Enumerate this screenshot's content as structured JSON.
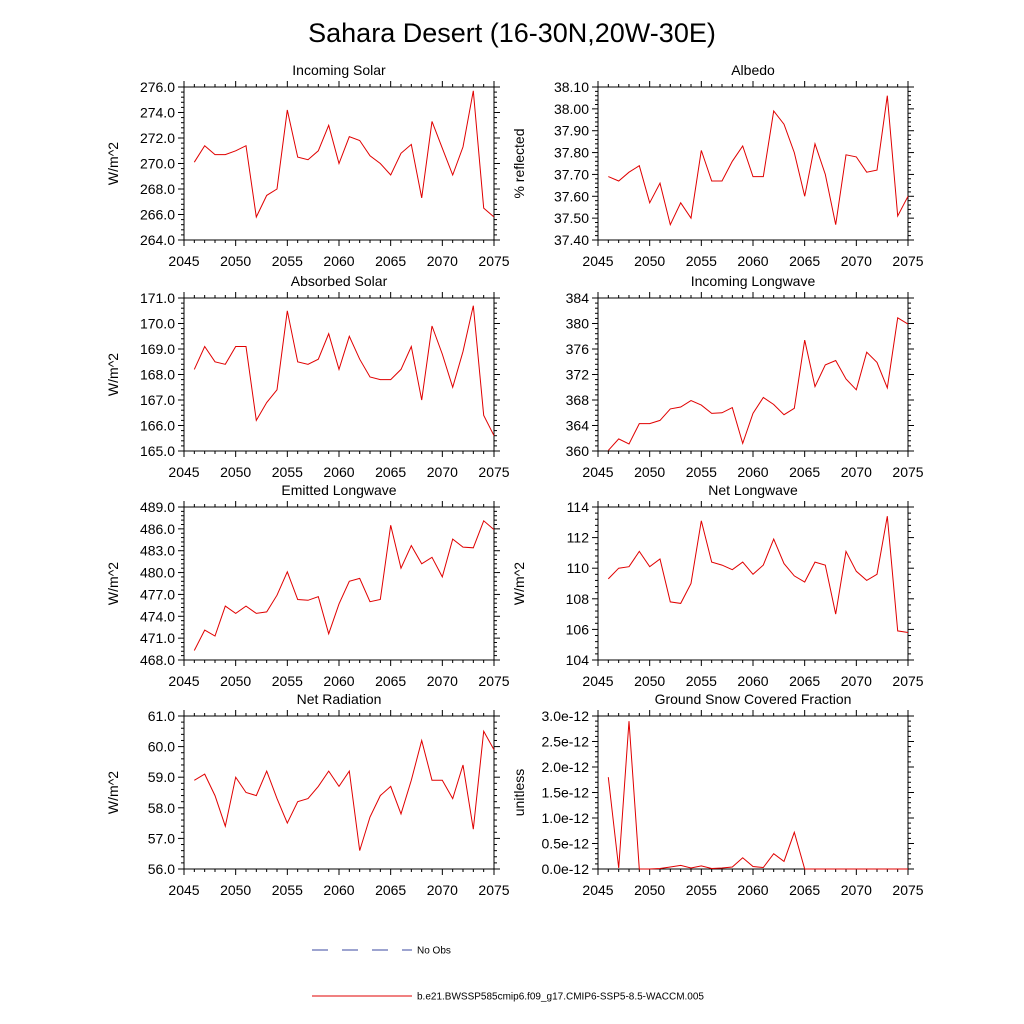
{
  "page_title": "Sahara Desert (16-30N,20W-30E)",
  "legend": {
    "items": [
      {
        "label": "No Obs",
        "style": "dashed",
        "color": "#3b4aa0"
      },
      {
        "label": "b.e21.BWSSP585cmip6.f09_g17.CMIP6-SSP5-8.5-WACCM.005",
        "style": "solid",
        "color": "#e00000"
      }
    ]
  },
  "chart_data": [
    {
      "type": "line",
      "title": "Incoming Solar",
      "ylabel": "W/m^2",
      "xlim": [
        2045,
        2075
      ],
      "ylim": [
        264,
        276
      ],
      "xticks": [
        2045,
        2050,
        2055,
        2060,
        2065,
        2070,
        2075
      ],
      "yticks": [
        264,
        266,
        268,
        270,
        272,
        274,
        276
      ],
      "yticklabels": [
        "264.0",
        "266.0",
        "268.0",
        "270.0",
        "272.0",
        "274.0",
        "276.0"
      ],
      "series": [
        {
          "color": "#e00000",
          "x": [
            2046,
            2047,
            2048,
            2049,
            2050,
            2051,
            2052,
            2053,
            2054,
            2055,
            2056,
            2057,
            2058,
            2059,
            2060,
            2061,
            2062,
            2063,
            2064,
            2065,
            2066,
            2067,
            2068,
            2069,
            2070,
            2071,
            2072,
            2073,
            2074,
            2075
          ],
          "y": [
            270.1,
            271.4,
            270.7,
            270.7,
            271.0,
            271.4,
            265.8,
            267.5,
            268.0,
            274.2,
            270.5,
            270.3,
            271.0,
            273.0,
            270.0,
            272.1,
            271.8,
            270.6,
            270.0,
            269.1,
            270.8,
            271.5,
            267.3,
            273.3,
            271.2,
            269.1,
            271.3,
            275.7,
            266.5,
            265.8
          ]
        }
      ]
    },
    {
      "type": "line",
      "title": "Albedo",
      "ylabel": "% reflected",
      "xlim": [
        2045,
        2075
      ],
      "ylim": [
        37.4,
        38.1
      ],
      "xticks": [
        2045,
        2050,
        2055,
        2060,
        2065,
        2070,
        2075
      ],
      "yticks": [
        37.4,
        37.5,
        37.6,
        37.7,
        37.8,
        37.9,
        38.0,
        38.1
      ],
      "yticklabels": [
        "37.40",
        "37.50",
        "37.60",
        "37.70",
        "37.80",
        "37.90",
        "38.00",
        "38.10"
      ],
      "series": [
        {
          "color": "#e00000",
          "x": [
            2046,
            2047,
            2048,
            2049,
            2050,
            2051,
            2052,
            2053,
            2054,
            2055,
            2056,
            2057,
            2058,
            2059,
            2060,
            2061,
            2062,
            2063,
            2064,
            2065,
            2066,
            2067,
            2068,
            2069,
            2070,
            2071,
            2072,
            2073,
            2074,
            2075
          ],
          "y": [
            37.69,
            37.67,
            37.71,
            37.74,
            37.57,
            37.66,
            37.47,
            37.57,
            37.5,
            37.81,
            37.67,
            37.67,
            37.76,
            37.83,
            37.69,
            37.69,
            37.99,
            37.93,
            37.8,
            37.6,
            37.84,
            37.7,
            37.47,
            37.79,
            37.78,
            37.71,
            37.72,
            38.06,
            37.51,
            37.6
          ]
        }
      ]
    },
    {
      "type": "line",
      "title": "Absorbed Solar",
      "ylabel": "W/m^2",
      "xlim": [
        2045,
        2075
      ],
      "ylim": [
        165,
        171
      ],
      "xticks": [
        2045,
        2050,
        2055,
        2060,
        2065,
        2070,
        2075
      ],
      "yticks": [
        165,
        166,
        167,
        168,
        169,
        170,
        171
      ],
      "yticklabels": [
        "165.0",
        "166.0",
        "167.0",
        "168.0",
        "169.0",
        "170.0",
        "171.0"
      ],
      "series": [
        {
          "color": "#e00000",
          "x": [
            2046,
            2047,
            2048,
            2049,
            2050,
            2051,
            2052,
            2053,
            2054,
            2055,
            2056,
            2057,
            2058,
            2059,
            2060,
            2061,
            2062,
            2063,
            2064,
            2065,
            2066,
            2067,
            2068,
            2069,
            2070,
            2071,
            2072,
            2073,
            2074,
            2075
          ],
          "y": [
            168.2,
            169.1,
            168.5,
            168.4,
            169.1,
            169.1,
            166.2,
            166.9,
            167.4,
            170.5,
            168.5,
            168.4,
            168.6,
            169.6,
            168.2,
            169.5,
            168.6,
            167.9,
            167.8,
            167.8,
            168.2,
            169.1,
            167.0,
            169.9,
            168.8,
            167.5,
            168.9,
            170.7,
            166.4,
            165.6
          ]
        }
      ]
    },
    {
      "type": "line",
      "title": "Incoming Longwave",
      "ylabel": "",
      "xlim": [
        2045,
        2075
      ],
      "ylim": [
        360,
        384
      ],
      "xticks": [
        2045,
        2050,
        2055,
        2060,
        2065,
        2070,
        2075
      ],
      "yticks": [
        360,
        364,
        368,
        372,
        376,
        380,
        384
      ],
      "yticklabels": [
        "360",
        "364",
        "368",
        "372",
        "376",
        "380",
        "384"
      ],
      "series": [
        {
          "color": "#e00000",
          "x": [
            2046,
            2047,
            2048,
            2049,
            2050,
            2051,
            2052,
            2053,
            2054,
            2055,
            2056,
            2057,
            2058,
            2059,
            2060,
            2061,
            2062,
            2063,
            2064,
            2065,
            2066,
            2067,
            2068,
            2069,
            2070,
            2071,
            2072,
            2073,
            2074,
            2075
          ],
          "y": [
            360.1,
            361.9,
            361.1,
            364.3,
            364.3,
            364.8,
            366.6,
            366.9,
            367.9,
            367.2,
            365.9,
            366.0,
            366.8,
            361.2,
            365.9,
            368.4,
            367.3,
            365.7,
            366.7,
            377.4,
            370.1,
            373.5,
            374.2,
            371.3,
            369.6,
            375.5,
            373.9,
            369.9,
            380.9,
            379.9
          ]
        }
      ]
    },
    {
      "type": "line",
      "title": "Emitted Longwave",
      "ylabel": "W/m^2",
      "xlim": [
        2045,
        2075
      ],
      "ylim": [
        468,
        489
      ],
      "xticks": [
        2045,
        2050,
        2055,
        2060,
        2065,
        2070,
        2075
      ],
      "yticks": [
        468,
        471,
        474,
        477,
        480,
        483,
        486,
        489
      ],
      "yticklabels": [
        "468.0",
        "471.0",
        "474.0",
        "477.0",
        "480.0",
        "483.0",
        "486.0",
        "489.0"
      ],
      "series": [
        {
          "color": "#e00000",
          "x": [
            2046,
            2047,
            2048,
            2049,
            2050,
            2051,
            2052,
            2053,
            2054,
            2055,
            2056,
            2057,
            2058,
            2059,
            2060,
            2061,
            2062,
            2063,
            2064,
            2065,
            2066,
            2067,
            2068,
            2069,
            2070,
            2071,
            2072,
            2073,
            2074,
            2075
          ],
          "y": [
            469.3,
            472.1,
            471.3,
            475.4,
            474.4,
            475.4,
            474.4,
            474.6,
            476.9,
            480.1,
            476.3,
            476.2,
            476.7,
            471.6,
            475.7,
            478.8,
            479.2,
            476.0,
            476.3,
            486.5,
            480.6,
            483.7,
            481.2,
            482.1,
            479.4,
            484.6,
            483.5,
            483.4,
            487.1,
            485.9
          ]
        }
      ]
    },
    {
      "type": "line",
      "title": "Net Longwave",
      "ylabel": "W/m^2",
      "xlim": [
        2045,
        2075
      ],
      "ylim": [
        104,
        114
      ],
      "xticks": [
        2045,
        2050,
        2055,
        2060,
        2065,
        2070,
        2075
      ],
      "yticks": [
        104,
        106,
        108,
        110,
        112,
        114
      ],
      "yticklabels": [
        "104",
        "106",
        "108",
        "110",
        "112",
        "114"
      ],
      "series": [
        {
          "color": "#e00000",
          "x": [
            2046,
            2047,
            2048,
            2049,
            2050,
            2051,
            2052,
            2053,
            2054,
            2055,
            2056,
            2057,
            2058,
            2059,
            2060,
            2061,
            2062,
            2063,
            2064,
            2065,
            2066,
            2067,
            2068,
            2069,
            2070,
            2071,
            2072,
            2073,
            2074,
            2075
          ],
          "y": [
            109.3,
            110.0,
            110.1,
            111.1,
            110.1,
            110.6,
            107.8,
            107.7,
            109.0,
            113.1,
            110.4,
            110.2,
            109.9,
            110.4,
            109.6,
            110.2,
            111.9,
            110.3,
            109.5,
            109.1,
            110.4,
            110.2,
            107.0,
            111.1,
            109.8,
            109.2,
            109.6,
            113.4,
            105.9,
            105.8
          ]
        }
      ]
    },
    {
      "type": "line",
      "title": "Net Radiation",
      "ylabel": "W/m^2",
      "xlim": [
        2045,
        2075
      ],
      "ylim": [
        56,
        61
      ],
      "xticks": [
        2045,
        2050,
        2055,
        2060,
        2065,
        2070,
        2075
      ],
      "yticks": [
        56,
        57,
        58,
        59,
        60,
        61
      ],
      "yticklabels": [
        "56.0",
        "57.0",
        "58.0",
        "59.0",
        "60.0",
        "61.0"
      ],
      "series": [
        {
          "color": "#e00000",
          "x": [
            2046,
            2047,
            2048,
            2049,
            2050,
            2051,
            2052,
            2053,
            2054,
            2055,
            2056,
            2057,
            2058,
            2059,
            2060,
            2061,
            2062,
            2063,
            2064,
            2065,
            2066,
            2067,
            2068,
            2069,
            2070,
            2071,
            2072,
            2073,
            2074,
            2075
          ],
          "y": [
            58.9,
            59.1,
            58.4,
            57.4,
            59.0,
            58.5,
            58.4,
            59.2,
            58.3,
            57.5,
            58.2,
            58.3,
            58.7,
            59.2,
            58.7,
            59.2,
            56.6,
            57.7,
            58.4,
            58.7,
            57.8,
            58.9,
            60.2,
            58.9,
            58.9,
            58.3,
            59.4,
            57.3,
            60.5,
            59.9
          ]
        }
      ]
    },
    {
      "type": "line",
      "title": "Ground Snow Covered Fraction",
      "ylabel": "unitless",
      "xlim": [
        2045,
        2075
      ],
      "ylim": [
        0,
        3e-12
      ],
      "xticks": [
        2045,
        2050,
        2055,
        2060,
        2065,
        2070,
        2075
      ],
      "yticks": [
        0,
        5e-13,
        1e-12,
        1.5e-12,
        2e-12,
        2.5e-12,
        3e-12
      ],
      "yticklabels": [
        "0.0e-12",
        "0.5e-12",
        "1.0e-12",
        "1.5e-12",
        "2.0e-12",
        "2.5e-12",
        "3.0e-12"
      ],
      "series": [
        {
          "color": "#e00000",
          "x": [
            2046,
            2047,
            2048,
            2049,
            2050,
            2051,
            2052,
            2053,
            2054,
            2055,
            2056,
            2057,
            2058,
            2059,
            2060,
            2061,
            2062,
            2063,
            2064,
            2065,
            2066,
            2067,
            2068,
            2069,
            2070,
            2071,
            2072,
            2073,
            2074,
            2075
          ],
          "y": [
            1.8e-12,
            2e-14,
            2.9e-12,
            0,
            0,
            1e-14,
            4e-14,
            7e-14,
            2e-14,
            6e-14,
            1e-14,
            2e-14,
            4e-14,
            2.2e-13,
            5e-14,
            3e-14,
            3e-13,
            1.5e-13,
            7.2e-13,
            0,
            0,
            0,
            0,
            0,
            0,
            0,
            0,
            0,
            0,
            0
          ]
        }
      ]
    }
  ]
}
